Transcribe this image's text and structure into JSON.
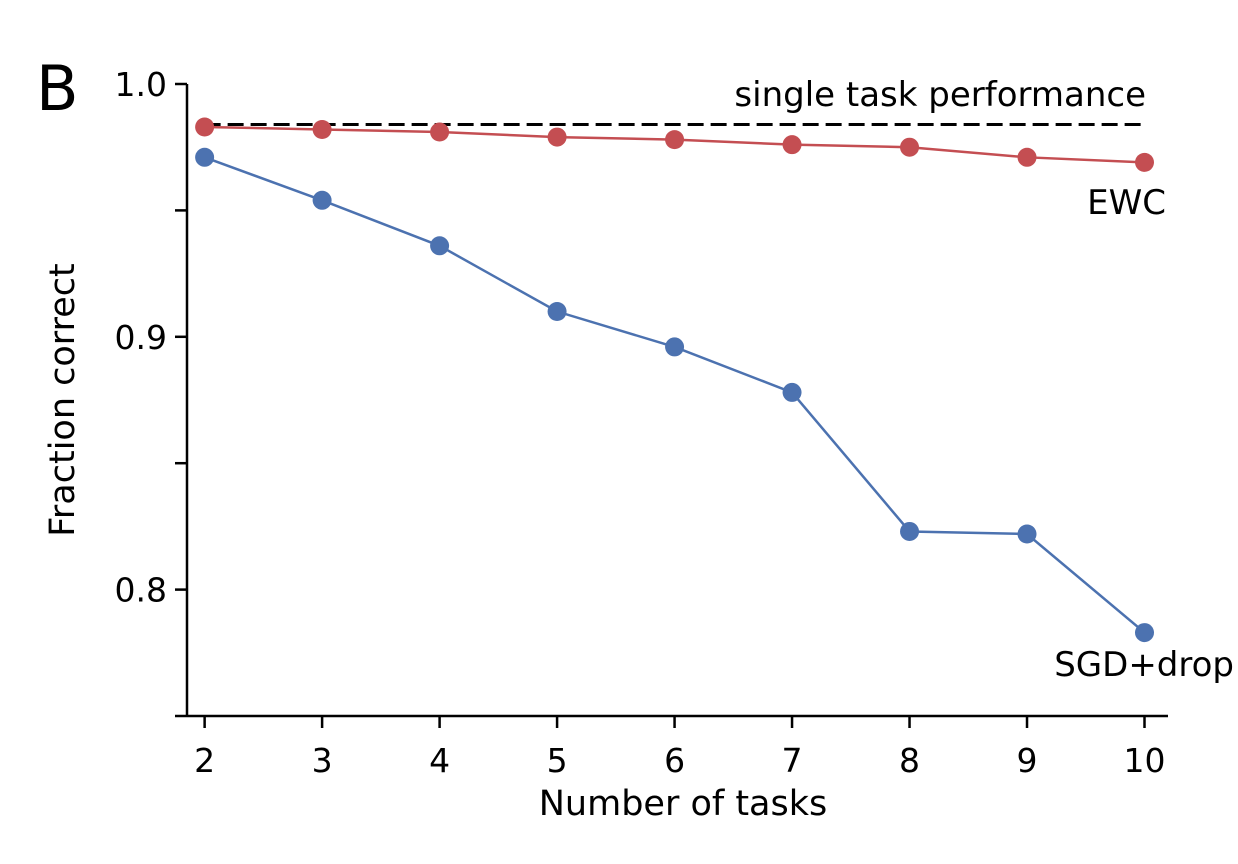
{
  "chart_data": {
    "type": "line",
    "panel_label": "B",
    "xlabel": "Number of tasks",
    "ylabel": "Fraction correct",
    "x": [
      2,
      3,
      4,
      5,
      6,
      7,
      8,
      9,
      10
    ],
    "x_tick_labels": [
      "2",
      "3",
      "4",
      "5",
      "6",
      "7",
      "8",
      "9",
      "10"
    ],
    "y_ticks": [
      0.75,
      0.8,
      0.85,
      0.9,
      0.95,
      1.0
    ],
    "y_tick_labels": [
      "0.8",
      "0.9",
      "1.0"
    ],
    "y_tick_label_values": [
      0.8,
      0.9,
      1.0
    ],
    "ylim": [
      0.75,
      1.0
    ],
    "xlim": [
      1.85,
      10.2
    ],
    "grid": false,
    "legend": "none",
    "series": [
      {
        "name": "EWC",
        "color": "#c44e52",
        "values": [
          0.983,
          0.982,
          0.981,
          0.979,
          0.978,
          0.976,
          0.975,
          0.971,
          0.969
        ]
      },
      {
        "name": "SGD+drop",
        "color": "#4c72b0",
        "values": [
          0.971,
          0.954,
          0.936,
          0.91,
          0.896,
          0.878,
          0.823,
          0.822,
          0.783
        ]
      }
    ],
    "reference_line": {
      "label": "single task performance",
      "value": 0.984,
      "style": "dashed",
      "color": "#000000"
    }
  }
}
